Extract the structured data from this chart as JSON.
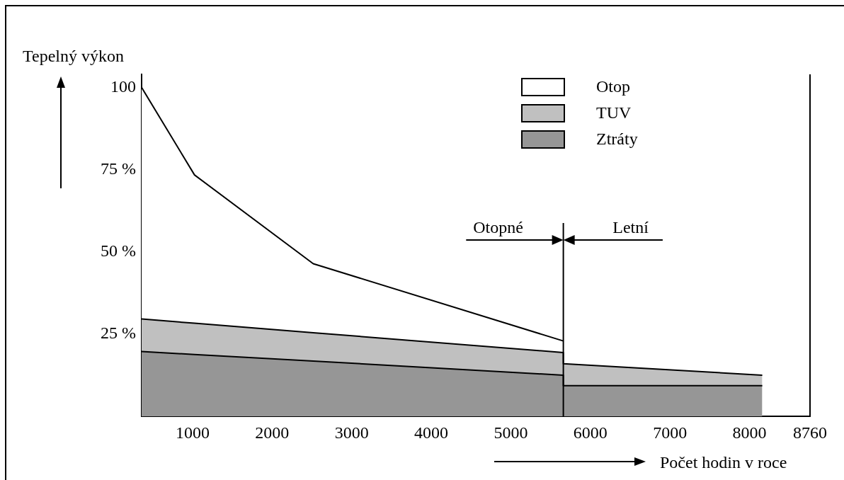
{
  "chart_data": {
    "type": "area",
    "stacked": true,
    "ylabel": "Tepelný výkon",
    "xlabel": "Počet hodin v roce",
    "x": [
      360,
      1025,
      2517,
      5660,
      5660,
      8160
    ],
    "series": [
      {
        "name": "Ztráty",
        "color": "#969696",
        "values": [
          19.7,
          18.8,
          16.8,
          12.5,
          9.3,
          9.3
        ]
      },
      {
        "name": "TUV",
        "color": "#c0c0c0",
        "values": [
          9.9,
          9.5,
          8.6,
          6.9,
          6.7,
          3.2
        ]
      },
      {
        "name": "Otop",
        "color": "#ffffff",
        "values": [
          70.4,
          45.1,
          21.0,
          3.5,
          null,
          null
        ]
      }
    ],
    "xlim": [
      360,
      8760
    ],
    "xticks": [
      1000,
      2000,
      3000,
      4000,
      5000,
      6000,
      7000,
      8000,
      8760
    ],
    "ylim": [
      0,
      104
    ],
    "yticks": [
      {
        "value": 25,
        "label": "25 %"
      },
      {
        "value": 50,
        "label": "50 %"
      },
      {
        "value": 75,
        "label": "75 %"
      },
      {
        "value": 100,
        "label": "100"
      }
    ],
    "ref_lines": [
      {
        "axis": "x",
        "value": 5660
      }
    ],
    "annotations": [
      {
        "text": "Otopné",
        "x": 5660,
        "y": 53.6
      },
      {
        "text": "Letní",
        "x": 5660,
        "y": 53.6
      }
    ],
    "legend": "top right",
    "grid": false
  }
}
